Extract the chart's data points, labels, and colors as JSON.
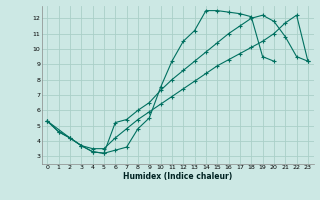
{
  "xlabel": "Humidex (Indice chaleur)",
  "bg_color": "#cce8e4",
  "grid_color": "#aacfc8",
  "line_color": "#007060",
  "xlim": [
    -0.5,
    23.5
  ],
  "ylim": [
    2.5,
    12.8
  ],
  "xticks": [
    0,
    1,
    2,
    3,
    4,
    5,
    6,
    7,
    8,
    9,
    10,
    11,
    12,
    13,
    14,
    15,
    16,
    17,
    18,
    19,
    20,
    21,
    22,
    23
  ],
  "yticks": [
    3,
    4,
    5,
    6,
    7,
    8,
    9,
    10,
    11,
    12
  ],
  "line1_x": [
    0,
    1,
    2,
    3,
    4,
    5,
    6,
    7,
    8,
    9,
    10,
    11,
    12,
    13,
    14,
    15,
    16,
    17,
    18,
    19,
    20,
    21,
    22,
    23
  ],
  "line1_y": [
    5.3,
    4.6,
    4.2,
    3.7,
    3.3,
    3.2,
    3.4,
    3.6,
    4.8,
    5.5,
    7.5,
    9.2,
    10.5,
    11.2,
    12.5,
    12.5,
    12.4,
    12.3,
    12.1,
    9.5,
    9.2,
    null,
    null,
    null
  ],
  "line2_x": [
    0,
    2,
    3,
    4,
    5,
    6,
    7,
    8,
    9,
    10,
    11,
    12,
    13,
    14,
    15,
    16,
    17,
    18,
    19,
    20,
    21,
    22,
    23
  ],
  "line2_y": [
    5.3,
    4.2,
    3.7,
    3.3,
    3.2,
    5.2,
    5.4,
    6.0,
    6.5,
    7.3,
    8.0,
    8.6,
    9.2,
    9.8,
    10.4,
    11.0,
    11.5,
    12.0,
    12.2,
    11.8,
    10.8,
    9.5,
    9.2
  ],
  "line3_x": [
    0,
    1,
    2,
    3,
    4,
    5,
    6,
    7,
    8,
    9,
    10,
    11,
    12,
    13,
    14,
    15,
    16,
    17,
    18,
    19,
    20,
    21,
    22,
    23
  ],
  "line3_y": [
    5.3,
    4.6,
    4.2,
    3.7,
    3.5,
    3.5,
    4.2,
    4.8,
    5.4,
    5.9,
    6.4,
    6.9,
    7.4,
    7.9,
    8.4,
    8.9,
    9.3,
    9.7,
    10.1,
    10.5,
    11.0,
    11.7,
    12.2,
    9.2
  ]
}
